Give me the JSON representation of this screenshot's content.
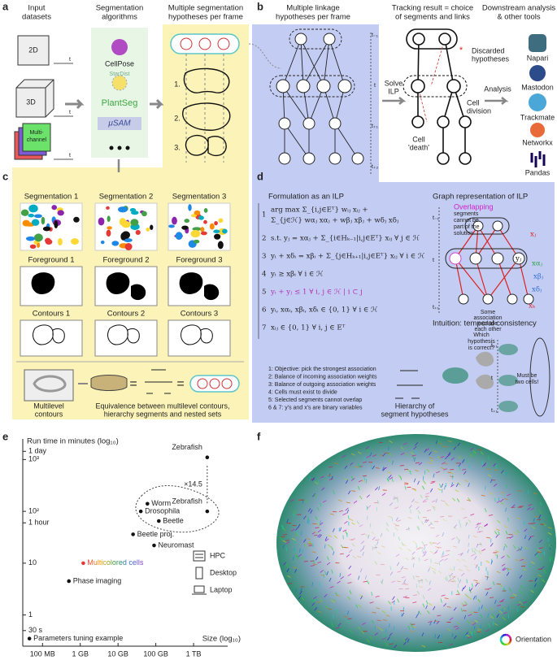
{
  "panel_labels": {
    "a": "a",
    "b": "b",
    "c": "c",
    "d": "d",
    "e": "e",
    "f": "f"
  },
  "a": {
    "input_title": [
      "Input",
      "datasets"
    ],
    "algorithms_title": [
      "Segmentation",
      "algorithms"
    ],
    "hypotheses_title": [
      "Multiple segmentation",
      "hypotheses per frame"
    ],
    "inputs": [
      "2D",
      "3D"
    ],
    "multichannel": [
      "Multi-",
      "channel"
    ],
    "time_axis": "t",
    "algorithms": [
      "CellPose",
      "StarDist",
      "PlantSeg",
      "μSAM"
    ],
    "hypothesis_numbers": [
      "1.",
      "2.",
      "3."
    ]
  },
  "b": {
    "linkage_title": [
      "Multiple linkage",
      "hypotheses per frame"
    ],
    "result_title": [
      "Tracking result = choice",
      "of segments and links"
    ],
    "downstream_title": [
      "Downstream analysis",
      "& other tools"
    ],
    "solve": [
      "Solve",
      "ILP"
    ],
    "frames": [
      "t₋₁",
      "t",
      "t₊₁",
      "t₊₂"
    ],
    "discarded": [
      "Discarded",
      "hypotheses"
    ],
    "death": [
      "Cell",
      "'death'"
    ],
    "division": [
      "Cell",
      "division"
    ],
    "analysis": "Analysis",
    "tools": [
      "Napari",
      "Mastodon",
      "Trackmate",
      "Networkx",
      "Pandas"
    ]
  },
  "c": {
    "segmentation": [
      "Segmentation 1",
      "Segmentation 2",
      "Segmentation 3"
    ],
    "foreground": [
      "Foreground 1",
      "Foreground 2",
      "Foreground 3"
    ],
    "contours": [
      "Contours 1",
      "Contours 2",
      "Contours 3"
    ],
    "multilevel": [
      "Multilevel",
      "contours"
    ],
    "equivalence": [
      "Equivalence between multilevel contours,",
      "hierarchy segments and nested sets"
    ]
  },
  "d": {
    "formulation_title": "Formulation as an ILP",
    "equations": [
      {
        "number": "1",
        "lines": [
          "arg max  Σ_{i,j∈Eᵀ} wᵢⱼ xᵢⱼ +",
          "Σ_{j∈ℋ} wαⱼ xαⱼ + wβⱼ xβⱼ + wδⱼ xδⱼ"
        ]
      },
      {
        "number": "2",
        "lines": [
          "s.t.  yⱼ = xαⱼ + Σ_{i∈Hₖ₋₁|i,j∈Eᵀ} xᵢⱼ   ∀ j ∈ ℋ"
        ]
      },
      {
        "number": "3",
        "lines": [
          "yᵢ + xδᵢ = xβᵢ + Σ_{j∈Hₖ₊₁|i,j∈Eᵀ} xᵢⱼ   ∀ i ∈ ℋ"
        ]
      },
      {
        "number": "4",
        "lines": [
          "yᵢ ≥ xβᵢ   ∀ i ∈ ℋ"
        ]
      },
      {
        "number": "5",
        "lines": [
          "yᵢ + yⱼ ≤ 1   ∀ i, j ∈ ℋ | i ⊂ j"
        ]
      },
      {
        "number": "6",
        "lines": [
          "yᵢ, xαᵢ, xβᵢ, xδᵢ ∈ {0, 1}   ∀ i ∈ ℋ"
        ]
      },
      {
        "number": "7",
        "lines": [
          "xᵢⱼ ∈ {0, 1}   ∀ i, j ∈ Eᵀ"
        ]
      }
    ],
    "notes": [
      "1: Objective: pick the strongest association",
      "2: Balance of incoming association weights",
      "3: Balance of outgoing association weights",
      "4: Cells must exist to divide",
      "5: Selected segments cannot overlap",
      "6 & 7: y's and x's are binary variables"
    ],
    "hierarchy": [
      "Hierarchy of",
      "segment hypotheses"
    ],
    "graph_title": "Graph representation of ILP",
    "overlap_note": [
      "Overlapping",
      "segments",
      "cannot be",
      "part of the",
      "solution"
    ],
    "exclusion_note": [
      "Some",
      "association",
      "exclude",
      "each other"
    ],
    "variables": [
      "xⱼ",
      "xαⱼ",
      "xβⱼ",
      "xδⱼ",
      "xₖ",
      "yⱼ"
    ],
    "intuition_title": "Intuition: temporal consistency",
    "question": [
      "Which",
      "hypothesis",
      "is correct?"
    ],
    "must": [
      "Must be",
      "two cells!"
    ]
  },
  "chart_data": {
    "type": "scatter",
    "y_label": "Run time in minutes (log₁₀)",
    "x_label": "Size (log₁₀)",
    "x": [
      0.045,
      0.5,
      1.2,
      90,
      25,
      120,
      40,
      60,
      2300,
      2300
    ],
    "values": [
      0.35,
      4.5,
      10,
      22,
      36,
      65,
      100,
      140,
      100,
      1100
    ],
    "point_labels": [
      "Parameters tuning example",
      "Phase imaging",
      "Multicolored cells",
      "Neuromast",
      "Beetle proj.",
      "Beetle",
      "Drosophila",
      "Worm",
      "Zebrafish",
      "Zebrafish"
    ],
    "annotation": "×14.5",
    "legend": [
      "HPC",
      "Desktop",
      "Laptop"
    ],
    "color": "#111111",
    "highlight_color": "#2f6fd1",
    "log_x": true,
    "log_y": true,
    "xlim": [
      0.03,
      8000
    ],
    "ylim": [
      0.25,
      2500
    ],
    "xticks": [
      {
        "value": 0.1,
        "label": "100 MB"
      },
      {
        "value": 1,
        "label": "1 GB"
      },
      {
        "value": 10,
        "label": "10 GB"
      },
      {
        "value": 100,
        "label": "100 GB"
      },
      {
        "value": 1000,
        "label": "1 TB"
      }
    ],
    "yticks": [
      {
        "value": 0.5,
        "label": "30 s"
      },
      1,
      10,
      {
        "value": 60,
        "label": "1 hour"
      },
      {
        "value": 100,
        "label": "10²"
      },
      {
        "value": 1000,
        "label": "10³"
      },
      {
        "value": 1440,
        "label": "1 day"
      }
    ]
  },
  "f": {
    "orientation": "Orientation"
  }
}
